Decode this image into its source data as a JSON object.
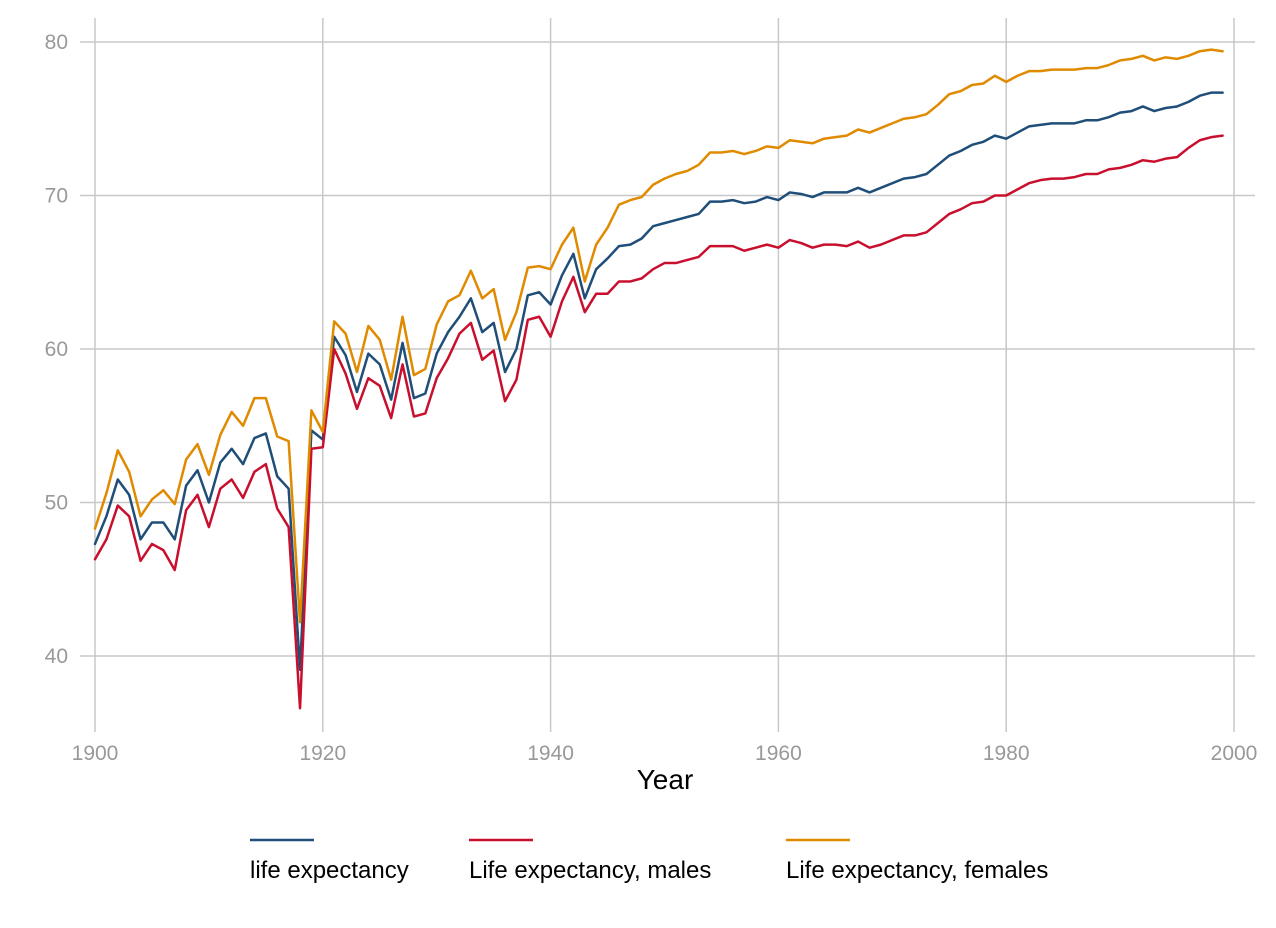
{
  "chart_data": {
    "type": "line",
    "xlabel": "Year",
    "ylabel": "",
    "xlim": [
      1900,
      2000
    ],
    "ylim": [
      35.5,
      81.5
    ],
    "xticks": [
      1900,
      1920,
      1940,
      1960,
      1980,
      2000
    ],
    "yticks": [
      40,
      50,
      60,
      70,
      80
    ],
    "grid": true,
    "legend_position": "bottom",
    "x": [
      1900,
      1901,
      1902,
      1903,
      1904,
      1905,
      1906,
      1907,
      1908,
      1909,
      1910,
      1911,
      1912,
      1913,
      1914,
      1915,
      1916,
      1917,
      1918,
      1919,
      1920,
      1921,
      1922,
      1923,
      1924,
      1925,
      1926,
      1927,
      1928,
      1929,
      1930,
      1931,
      1932,
      1933,
      1934,
      1935,
      1936,
      1937,
      1938,
      1939,
      1940,
      1941,
      1942,
      1943,
      1944,
      1945,
      1946,
      1947,
      1948,
      1949,
      1950,
      1951,
      1952,
      1953,
      1954,
      1955,
      1956,
      1957,
      1958,
      1959,
      1960,
      1961,
      1962,
      1963,
      1964,
      1965,
      1966,
      1967,
      1968,
      1969,
      1970,
      1971,
      1972,
      1973,
      1974,
      1975,
      1976,
      1977,
      1978,
      1979,
      1980,
      1981,
      1982,
      1983,
      1984,
      1985,
      1986,
      1987,
      1988,
      1989,
      1990,
      1991,
      1992,
      1993,
      1994,
      1995,
      1996,
      1997,
      1998,
      1999
    ],
    "series": [
      {
        "name": "life expectancy",
        "color": "#1f4e79",
        "values": [
          47.3,
          49.1,
          51.5,
          50.5,
          47.6,
          48.7,
          48.7,
          47.6,
          51.1,
          52.1,
          50.0,
          52.6,
          53.5,
          52.5,
          54.2,
          54.5,
          51.7,
          50.9,
          39.1,
          54.7,
          54.1,
          60.8,
          59.6,
          57.2,
          59.7,
          59.0,
          56.7,
          60.4,
          56.8,
          57.1,
          59.7,
          61.1,
          62.1,
          63.3,
          61.1,
          61.7,
          58.5,
          60.0,
          63.5,
          63.7,
          62.9,
          64.8,
          66.2,
          63.3,
          65.2,
          65.9,
          66.7,
          66.8,
          67.2,
          68.0,
          68.2,
          68.4,
          68.6,
          68.8,
          69.6,
          69.6,
          69.7,
          69.5,
          69.6,
          69.9,
          69.7,
          70.2,
          70.1,
          69.9,
          70.2,
          70.2,
          70.2,
          70.5,
          70.2,
          70.5,
          70.8,
          71.1,
          71.2,
          71.4,
          72.0,
          72.6,
          72.9,
          73.3,
          73.5,
          73.9,
          73.7,
          74.1,
          74.5,
          74.6,
          74.7,
          74.7,
          74.7,
          74.9,
          74.9,
          75.1,
          75.4,
          75.5,
          75.8,
          75.5,
          75.7,
          75.8,
          76.1,
          76.5,
          76.7,
          76.7
        ]
      },
      {
        "name": "Life expectancy, males",
        "color": "#c8102e",
        "values": [
          46.3,
          47.6,
          49.8,
          49.1,
          46.2,
          47.3,
          46.9,
          45.6,
          49.5,
          50.5,
          48.4,
          50.9,
          51.5,
          50.3,
          52.0,
          52.5,
          49.6,
          48.4,
          36.6,
          53.5,
          53.6,
          60.0,
          58.4,
          56.1,
          58.1,
          57.6,
          55.5,
          59.0,
          55.6,
          55.8,
          58.1,
          59.4,
          61.0,
          61.7,
          59.3,
          59.9,
          56.6,
          58.0,
          61.9,
          62.1,
          60.8,
          63.1,
          64.7,
          62.4,
          63.6,
          63.6,
          64.4,
          64.4,
          64.6,
          65.2,
          65.6,
          65.6,
          65.8,
          66.0,
          66.7,
          66.7,
          66.7,
          66.4,
          66.6,
          66.8,
          66.6,
          67.1,
          66.9,
          66.6,
          66.8,
          66.8,
          66.7,
          67.0,
          66.6,
          66.8,
          67.1,
          67.4,
          67.4,
          67.6,
          68.2,
          68.8,
          69.1,
          69.5,
          69.6,
          70.0,
          70.0,
          70.4,
          70.8,
          71.0,
          71.1,
          71.1,
          71.2,
          71.4,
          71.4,
          71.7,
          71.8,
          72.0,
          72.3,
          72.2,
          72.4,
          72.5,
          73.1,
          73.6,
          73.8,
          73.9
        ]
      },
      {
        "name": "Life expectancy, females",
        "color": "#e08a00",
        "values": [
          48.3,
          50.6,
          53.4,
          52.0,
          49.1,
          50.2,
          50.8,
          49.9,
          52.8,
          53.8,
          51.8,
          54.4,
          55.9,
          55.0,
          56.8,
          56.8,
          54.3,
          54.0,
          42.2,
          56.0,
          54.6,
          61.8,
          61.0,
          58.5,
          61.5,
          60.6,
          58.0,
          62.1,
          58.3,
          58.7,
          61.6,
          63.1,
          63.5,
          65.1,
          63.3,
          63.9,
          60.6,
          62.4,
          65.3,
          65.4,
          65.2,
          66.8,
          67.9,
          64.4,
          66.8,
          67.9,
          69.4,
          69.7,
          69.9,
          70.7,
          71.1,
          71.4,
          71.6,
          72.0,
          72.8,
          72.8,
          72.9,
          72.7,
          72.9,
          73.2,
          73.1,
          73.6,
          73.5,
          73.4,
          73.7,
          73.8,
          73.9,
          74.3,
          74.1,
          74.4,
          74.7,
          75.0,
          75.1,
          75.3,
          75.9,
          76.6,
          76.8,
          77.2,
          77.3,
          77.8,
          77.4,
          77.8,
          78.1,
          78.1,
          78.2,
          78.2,
          78.2,
          78.3,
          78.3,
          78.5,
          78.8,
          78.9,
          79.1,
          78.8,
          79.0,
          78.9,
          79.1,
          79.4,
          79.5,
          79.4
        ]
      }
    ]
  }
}
